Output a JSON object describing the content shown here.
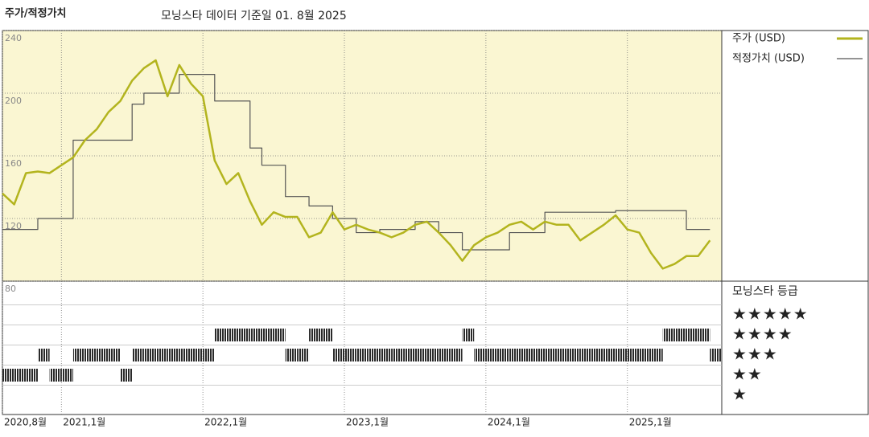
{
  "chart_data": {
    "type": "line",
    "title": "주가/적정가치",
    "subtitle": "모닝스타 데이터 기준일 01. 8월 2025",
    "x": [
      "2020-08",
      "2020-09",
      "2020-10",
      "2020-11",
      "2020-12",
      "2021-01",
      "2021-02",
      "2021-03",
      "2021-04",
      "2021-05",
      "2021-06",
      "2021-07",
      "2021-08",
      "2021-09",
      "2021-10",
      "2021-11",
      "2021-12",
      "2022-01",
      "2022-02",
      "2022-03",
      "2022-04",
      "2022-05",
      "2022-06",
      "2022-07",
      "2022-08",
      "2022-09",
      "2022-10",
      "2022-11",
      "2022-12",
      "2023-01",
      "2023-02",
      "2023-03",
      "2023-04",
      "2023-05",
      "2023-06",
      "2023-07",
      "2023-08",
      "2023-09",
      "2023-10",
      "2023-11",
      "2023-12",
      "2024-01",
      "2024-02",
      "2024-03",
      "2024-04",
      "2024-05",
      "2024-06",
      "2024-07",
      "2024-08",
      "2024-09",
      "2024-10",
      "2024-11",
      "2024-12",
      "2025-01",
      "2025-02",
      "2025-03",
      "2025-04",
      "2025-05",
      "2025-06",
      "2025-07",
      "2025-08"
    ],
    "series": [
      {
        "name": "주가 (USD)",
        "color": "#b3b41e",
        "step": false,
        "values": [
          136,
          129,
          149,
          150,
          149,
          154,
          159,
          170,
          177,
          188,
          195,
          208,
          216,
          221,
          198,
          218,
          206,
          198,
          157,
          142,
          149,
          131,
          116,
          124,
          121,
          121,
          108,
          111,
          124,
          113,
          116,
          113,
          111,
          108,
          111,
          116,
          118,
          111,
          103,
          93,
          103,
          108,
          111,
          116,
          118,
          113,
          118,
          116,
          116,
          106,
          111,
          116,
          122,
          113,
          111,
          98,
          88,
          91,
          96,
          96,
          106
        ]
      },
      {
        "name": "적정가치 (USD)",
        "color": "#555555",
        "step": true,
        "values": [
          113,
          113,
          113,
          120,
          120,
          120,
          170,
          170,
          170,
          170,
          170,
          193,
          200,
          200,
          200,
          212,
          212,
          212,
          195,
          195,
          195,
          165,
          154,
          154,
          134,
          134,
          128,
          128,
          120,
          120,
          111,
          111,
          113,
          113,
          113,
          118,
          118,
          111,
          111,
          100,
          100,
          100,
          100,
          111,
          111,
          111,
          124,
          124,
          124,
          124,
          124,
          124,
          125,
          125,
          125,
          125,
          125,
          125,
          113,
          113,
          113
        ]
      }
    ],
    "xlim": [
      "2020-08",
      "2025-09"
    ],
    "xticks": [
      {
        "value": "2020-08",
        "label": "2020,8월"
      },
      {
        "value": "2021-01",
        "label": "2021,1월"
      },
      {
        "value": "2022-01",
        "label": "2022,1월"
      },
      {
        "value": "2023-01",
        "label": "2023,1월"
      },
      {
        "value": "2024-01",
        "label": "2024,1월"
      },
      {
        "value": "2025-01",
        "label": "2025,1월"
      }
    ],
    "ylim": [
      80,
      240
    ],
    "yticks": [
      80,
      120,
      160,
      200,
      240
    ],
    "rating": {
      "title": "모닝스타 등급",
      "color": "#2a2a2a",
      "values": [
        2,
        2,
        2,
        3,
        2,
        2,
        3,
        3,
        3,
        3,
        2,
        3,
        3,
        3,
        3,
        3,
        3,
        3,
        4,
        4,
        4,
        4,
        4,
        4,
        3,
        3,
        4,
        4,
        3,
        3,
        3,
        3,
        3,
        3,
        3,
        3,
        3,
        3,
        3,
        4,
        3,
        3,
        3,
        3,
        3,
        3,
        3,
        3,
        3,
        3,
        3,
        3,
        3,
        3,
        3,
        3,
        4,
        4,
        4,
        4,
        3
      ],
      "ticks": [
        {
          "value": 5,
          "label": "★★★★★"
        },
        {
          "value": 4,
          "label": "★★★★"
        },
        {
          "value": 3,
          "label": "★★★"
        },
        {
          "value": 2,
          "label": "★★"
        },
        {
          "value": 1,
          "label": "★"
        }
      ]
    }
  }
}
